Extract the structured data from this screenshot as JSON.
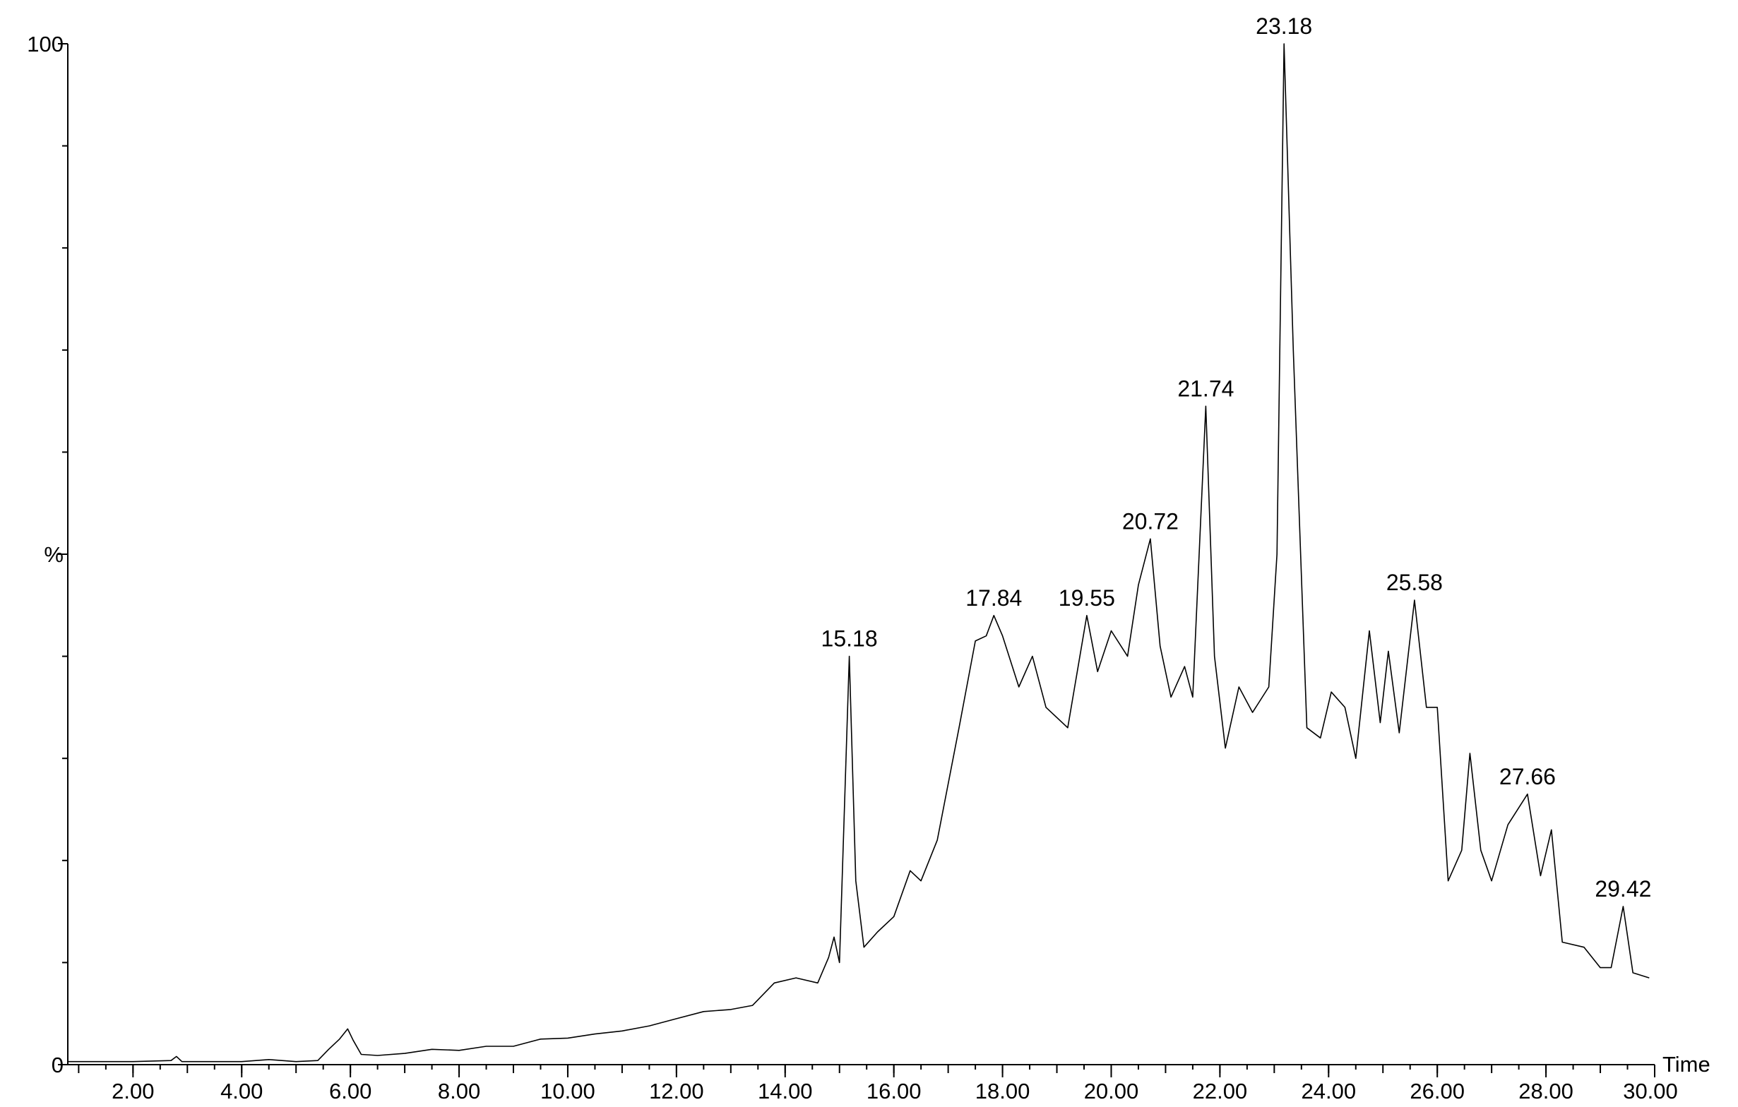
{
  "chart_data": {
    "type": "line",
    "title": "",
    "xlabel": "Time",
    "ylabel": "%",
    "xlim": [
      0.8,
      30.0
    ],
    "ylim": [
      0,
      100
    ],
    "x_ticks": [
      2.0,
      4.0,
      6.0,
      8.0,
      10.0,
      12.0,
      14.0,
      16.0,
      18.0,
      20.0,
      22.0,
      24.0,
      26.0,
      28.0,
      30.0
    ],
    "x_tick_labels": [
      "2.00",
      "4.00",
      "6.00",
      "8.00",
      "10.00",
      "12.00",
      "14.00",
      "16.00",
      "18.00",
      "20.00",
      "22.00",
      "24.00",
      "26.00",
      "28.00",
      "30.00"
    ],
    "y_ticks": [
      0,
      50,
      100
    ],
    "y_tick_labels": [
      "0",
      "%",
      "100"
    ],
    "y_minor_ticks": [
      10,
      20,
      30,
      40,
      60,
      70,
      80,
      90
    ],
    "grid": false,
    "series": [
      {
        "values": [
          [
            0.8,
            0.3
          ],
          [
            1.5,
            0.3
          ],
          [
            2.0,
            0.3
          ],
          [
            2.7,
            0.4
          ],
          [
            2.8,
            0.8
          ],
          [
            2.9,
            0.3
          ],
          [
            3.5,
            0.3
          ],
          [
            4.0,
            0.3
          ],
          [
            4.5,
            0.5
          ],
          [
            5.0,
            0.3
          ],
          [
            5.4,
            0.4
          ],
          [
            5.6,
            1.5
          ],
          [
            5.8,
            2.5
          ],
          [
            5.95,
            3.5
          ],
          [
            6.05,
            2.4
          ],
          [
            6.2,
            1.0
          ],
          [
            6.5,
            0.9
          ],
          [
            7.0,
            1.1
          ],
          [
            7.5,
            1.5
          ],
          [
            8.0,
            1.4
          ],
          [
            8.5,
            1.8
          ],
          [
            9.0,
            1.8
          ],
          [
            9.5,
            2.5
          ],
          [
            10.0,
            2.6
          ],
          [
            10.5,
            3.0
          ],
          [
            11.0,
            3.3
          ],
          [
            11.5,
            3.8
          ],
          [
            12.0,
            4.5
          ],
          [
            12.5,
            5.2
          ],
          [
            13.0,
            5.4
          ],
          [
            13.4,
            5.8
          ],
          [
            13.8,
            8.0
          ],
          [
            14.2,
            8.5
          ],
          [
            14.6,
            8.0
          ],
          [
            14.8,
            10.5
          ],
          [
            14.9,
            12.5
          ],
          [
            15.0,
            10.0
          ],
          [
            15.18,
            40.0
          ],
          [
            15.3,
            18.0
          ],
          [
            15.45,
            11.5
          ],
          [
            15.7,
            13.0
          ],
          [
            16.0,
            14.5
          ],
          [
            16.3,
            19.0
          ],
          [
            16.5,
            18.0
          ],
          [
            16.8,
            22.0
          ],
          [
            17.2,
            33.0
          ],
          [
            17.5,
            41.5
          ],
          [
            17.7,
            42.0
          ],
          [
            17.84,
            44.0
          ],
          [
            18.0,
            42.0
          ],
          [
            18.3,
            37.0
          ],
          [
            18.55,
            40.0
          ],
          [
            18.8,
            35.0
          ],
          [
            19.2,
            33.0
          ],
          [
            19.55,
            44.0
          ],
          [
            19.75,
            38.5
          ],
          [
            20.0,
            42.5
          ],
          [
            20.3,
            40.0
          ],
          [
            20.5,
            47.0
          ],
          [
            20.72,
            51.5
          ],
          [
            20.9,
            41.0
          ],
          [
            21.1,
            36.0
          ],
          [
            21.35,
            39.0
          ],
          [
            21.5,
            36.0
          ],
          [
            21.74,
            64.5
          ],
          [
            21.9,
            40.0
          ],
          [
            22.1,
            31.0
          ],
          [
            22.35,
            37.0
          ],
          [
            22.6,
            34.5
          ],
          [
            22.9,
            37.0
          ],
          [
            23.05,
            50.0
          ],
          [
            23.18,
            100.0
          ],
          [
            23.35,
            70.0
          ],
          [
            23.6,
            33.0
          ],
          [
            23.85,
            32.0
          ],
          [
            24.05,
            36.5
          ],
          [
            24.3,
            35.0
          ],
          [
            24.5,
            30.0
          ],
          [
            24.75,
            42.5
          ],
          [
            24.95,
            33.5
          ],
          [
            25.1,
            40.5
          ],
          [
            25.3,
            32.5
          ],
          [
            25.58,
            45.5
          ],
          [
            25.8,
            35.0
          ],
          [
            26.0,
            35.0
          ],
          [
            26.2,
            18.0
          ],
          [
            26.45,
            21.0
          ],
          [
            26.6,
            30.5
          ],
          [
            26.8,
            21.0
          ],
          [
            27.0,
            18.0
          ],
          [
            27.3,
            23.5
          ],
          [
            27.66,
            26.5
          ],
          [
            27.9,
            18.5
          ],
          [
            28.1,
            23.0
          ],
          [
            28.3,
            12.0
          ],
          [
            28.7,
            11.5
          ],
          [
            29.0,
            9.5
          ],
          [
            29.2,
            9.5
          ],
          [
            29.42,
            15.5
          ],
          [
            29.6,
            9.0
          ],
          [
            29.9,
            8.5
          ]
        ]
      }
    ],
    "peak_labels": [
      {
        "x": 15.18,
        "y": 40.0,
        "text": "15.18"
      },
      {
        "x": 17.84,
        "y": 44.0,
        "text": "17.84"
      },
      {
        "x": 19.55,
        "y": 44.0,
        "text": "19.55"
      },
      {
        "x": 20.72,
        "y": 51.5,
        "text": "20.72"
      },
      {
        "x": 21.74,
        "y": 64.5,
        "text": "21.74"
      },
      {
        "x": 23.18,
        "y": 100.0,
        "text": "23.18"
      },
      {
        "x": 25.58,
        "y": 45.5,
        "text": "25.58"
      },
      {
        "x": 27.66,
        "y": 26.5,
        "text": "27.66"
      },
      {
        "x": 29.42,
        "y": 15.5,
        "text": "29.42"
      }
    ]
  }
}
